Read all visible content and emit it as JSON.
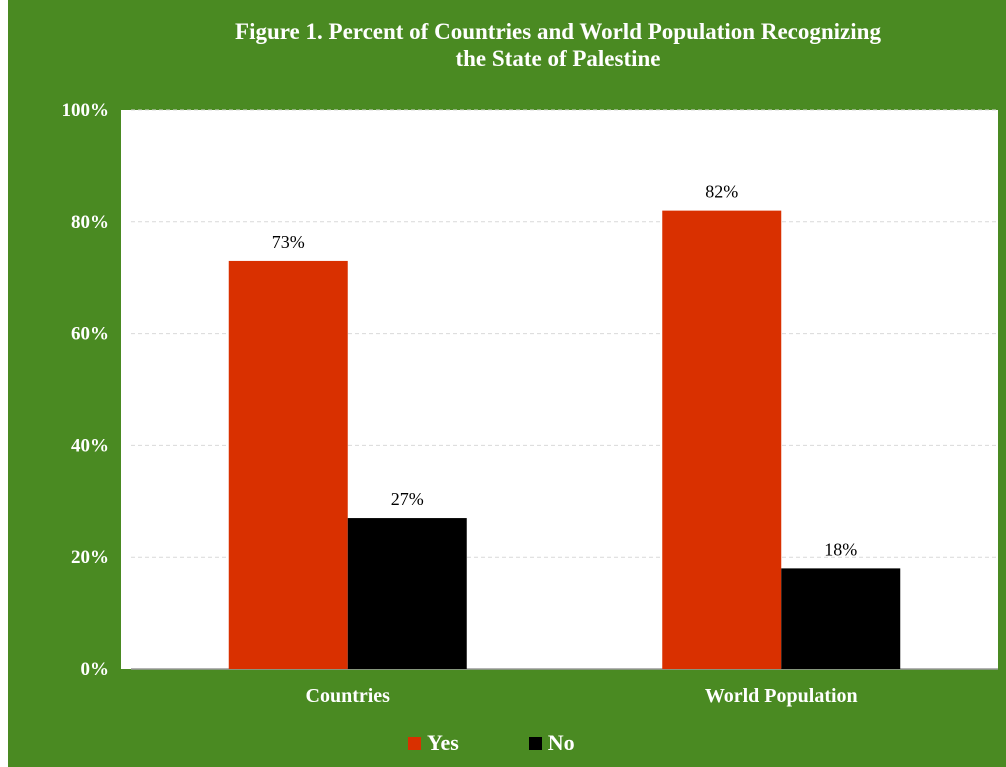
{
  "chart_data": {
    "type": "bar",
    "title": "Figure 1. Percent of Countries and World Population Recognizing\nthe State of Palestine",
    "categories": [
      "Countries",
      "World Population"
    ],
    "series": [
      {
        "name": "Yes",
        "values": [
          73,
          82
        ],
        "color": "#d93000"
      },
      {
        "name": "No",
        "values": [
          27,
          18
        ],
        "color": "#000000"
      }
    ],
    "data_labels": [
      [
        "73%",
        "82%"
      ],
      [
        "27%",
        "18%"
      ]
    ],
    "y_ticks": [
      "0%",
      "20%",
      "40%",
      "60%",
      "80%",
      "100%"
    ],
    "ylim": [
      0,
      100
    ],
    "grid": true,
    "legend_position": "bottom",
    "frame_color": "#4a8a22",
    "plot_background": "#ffffff"
  }
}
